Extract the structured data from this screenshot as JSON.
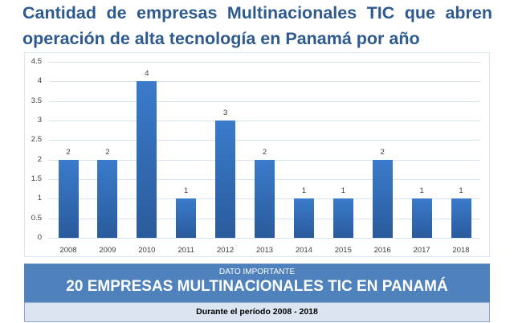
{
  "title": "Cantidad de empresas Multinacionales TIC que abren operación de alta tecnología en Panamá por año",
  "chart_data": {
    "type": "bar",
    "title": "Cantidad de empresas Multinacionales TIC que abren operación de alta tecnología en Panamá por año",
    "categories": [
      "2008",
      "2009",
      "2010",
      "2011",
      "2012",
      "2013",
      "2014",
      "2015",
      "2016",
      "2017",
      "2018"
    ],
    "values": [
      2,
      2,
      4,
      1,
      3,
      2,
      1,
      1,
      2,
      1,
      1
    ],
    "xlabel": "",
    "ylabel": "",
    "ylim": [
      0,
      4.5
    ],
    "yticks": [
      "0",
      "0.5",
      "1",
      "1.5",
      "2",
      "2.5",
      "3",
      "3.5",
      "4",
      "4.5"
    ],
    "grid": true,
    "data_labels": true,
    "legend": "none",
    "bar_color": "#3a7bcb"
  },
  "banner": {
    "kicker": "DATO IMPORTANTE",
    "headline": "20 EMPRESAS MULTINACIONALES TIC EN PANAMÁ",
    "period": "Durante el período 2008 - 2018"
  }
}
